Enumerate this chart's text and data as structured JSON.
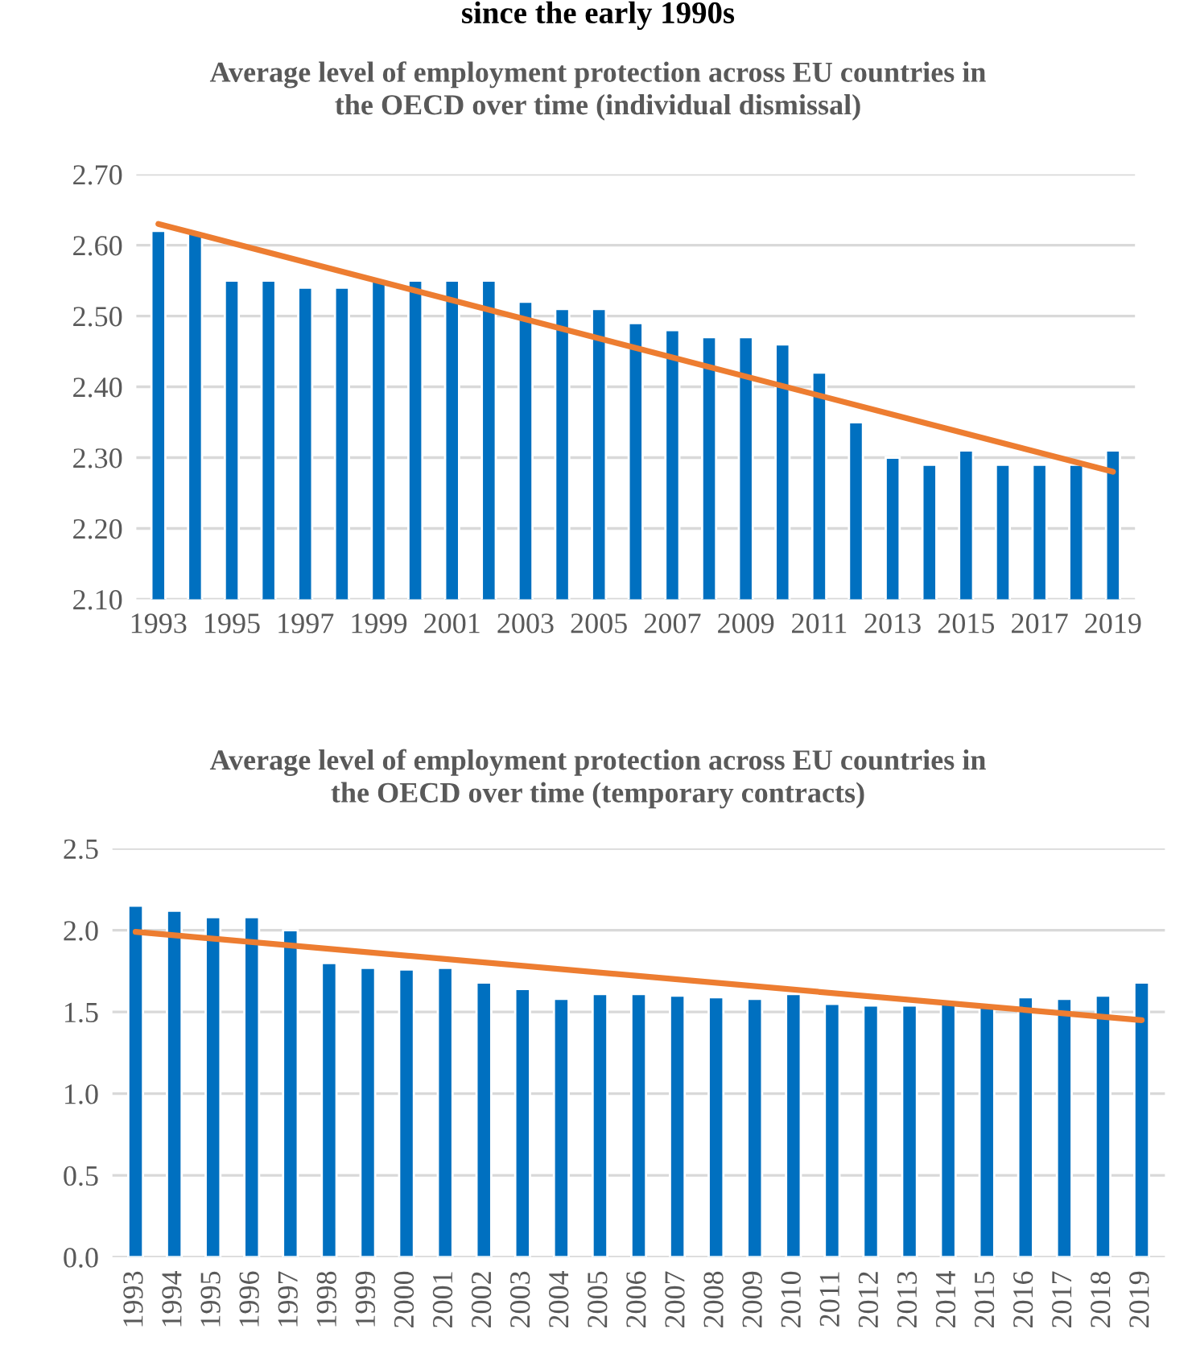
{
  "chart_data": [
    {
      "type": "bar",
      "title": "Average level of employment protection across EU countries in\nthe OECD over time (individual dismissal)",
      "annotations": [
        "since the early 1990s"
      ],
      "categories": [
        "1993",
        null,
        "1995",
        null,
        "1997",
        null,
        "1999",
        null,
        "2001",
        null,
        "2003",
        null,
        "2005",
        null,
        "2007",
        null,
        "2009",
        null,
        "2011",
        null,
        "2013",
        null,
        "2015",
        null,
        "2017",
        null,
        "2019"
      ],
      "series": [
        {
          "color": "#0070c0",
          "values": [
            2.62,
            2.62,
            2.55,
            2.55,
            2.54,
            2.54,
            2.55,
            2.55,
            2.55,
            2.55,
            2.52,
            2.51,
            2.51,
            2.49,
            2.48,
            2.47,
            2.47,
            2.46,
            2.42,
            2.35,
            2.3,
            2.29,
            2.31,
            2.29,
            2.29,
            2.29,
            2.31
          ]
        },
        {
          "type": "line",
          "color": "#ed7d31",
          "values": [
            2.63,
            null,
            null,
            null,
            null,
            null,
            null,
            null,
            null,
            null,
            null,
            null,
            null,
            null,
            null,
            null,
            null,
            null,
            null,
            null,
            null,
            null,
            null,
            null,
            null,
            null,
            2.28
          ]
        }
      ],
      "ylim": [
        2.1,
        2.7
      ],
      "yticks": [
        {
          "value": 2.1,
          "label": "2.10"
        },
        {
          "value": 2.2,
          "label": "2.20"
        },
        {
          "value": 2.3,
          "label": "2.30"
        },
        {
          "value": 2.4,
          "label": "2.40"
        },
        {
          "value": 2.5,
          "label": "2.50"
        },
        {
          "value": 2.6,
          "label": "2.60"
        },
        {
          "value": 2.7,
          "label": "2.70"
        }
      ],
      "grid": "y"
    },
    {
      "type": "bar",
      "title": "Average level of employment protection across EU countries in\nthe OECD over time (temporary contracts)",
      "categories": [
        "1993",
        "1994",
        "1995",
        "1996",
        "1997",
        "1998",
        "1999",
        "2000",
        "2001",
        "2002",
        "2003",
        "2004",
        "2005",
        "2006",
        "2007",
        "2008",
        "2009",
        "2010",
        "2011",
        "2012",
        "2013",
        "2014",
        "2015",
        "2016",
        "2017",
        "2018",
        "2019"
      ],
      "series": [
        {
          "color": "#0070c0",
          "values": [
            2.15,
            2.12,
            2.08,
            2.08,
            2.0,
            1.8,
            1.77,
            1.76,
            1.77,
            1.68,
            1.64,
            1.58,
            1.61,
            1.61,
            1.6,
            1.59,
            1.58,
            1.61,
            1.55,
            1.54,
            1.54,
            1.55,
            1.53,
            1.59,
            1.58,
            1.6,
            1.68
          ]
        },
        {
          "type": "line",
          "color": "#ed7d31",
          "values": [
            1.99,
            null,
            null,
            null,
            null,
            null,
            null,
            null,
            null,
            null,
            null,
            null,
            null,
            null,
            null,
            null,
            null,
            null,
            null,
            null,
            null,
            null,
            null,
            null,
            null,
            null,
            1.45
          ]
        }
      ],
      "ylim": [
        0,
        2.5
      ],
      "yticks": [
        {
          "value": 0,
          "label": "0.0"
        },
        {
          "value": 0.5,
          "label": "0.5"
        },
        {
          "value": 1.0,
          "label": "1.0"
        },
        {
          "value": 1.5,
          "label": "1.5"
        },
        {
          "value": 2.0,
          "label": "2.0"
        },
        {
          "value": 2.5,
          "label": "2.5"
        }
      ],
      "grid": "y"
    }
  ]
}
